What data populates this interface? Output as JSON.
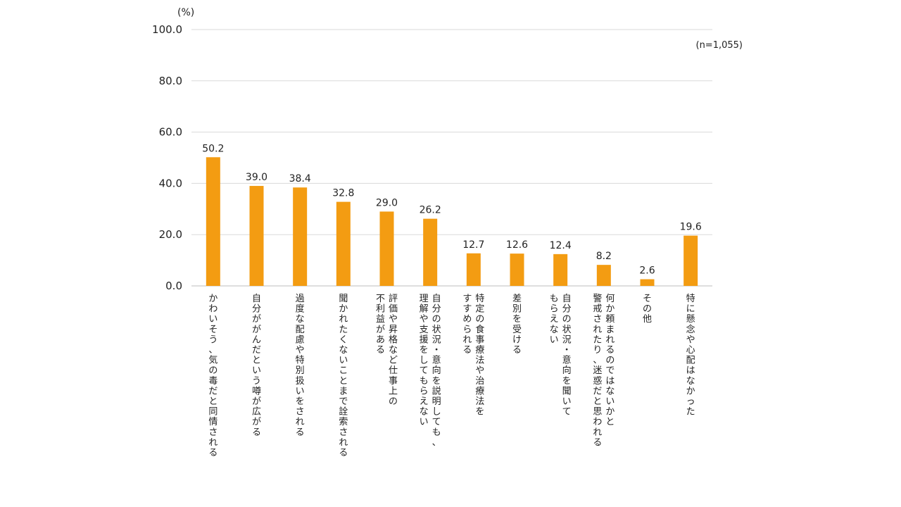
{
  "chart_data": {
    "type": "bar",
    "unit": "(%)",
    "sample": "(n=1,055)",
    "ylim": [
      0,
      100
    ],
    "yticks": [
      "0.0",
      "20.0",
      "40.0",
      "60.0",
      "80.0",
      "100.0"
    ],
    "grid": true,
    "bar_color": "#F39C12",
    "categories": [
      [
        "かわいそう、気の毒だと同情される"
      ],
      [
        "自分ががんだという噂が広がる"
      ],
      [
        "過度な配慮や特別扱いをされる"
      ],
      [
        "聞かれたくないことまで詮索される"
      ],
      [
        "評価や昇格など仕事上の",
        "不利益がある"
      ],
      [
        "自分の状況・意向を説明しても、",
        "理解や支援をしてもらえない"
      ],
      [
        "特定の食事療法や治療法を",
        "すすめられる"
      ],
      [
        "差別を受ける"
      ],
      [
        "自分の状況・意向を聞いて",
        "もらえない"
      ],
      [
        "何か頼まれるのではないかと",
        "警戒されたり、迷惑だと思われる"
      ],
      [
        "その他"
      ],
      [
        "特に懸念や心配はなかった"
      ]
    ],
    "values": [
      50.2,
      39.0,
      38.4,
      32.8,
      29.0,
      26.2,
      12.7,
      12.6,
      12.4,
      8.2,
      2.6,
      19.6
    ],
    "value_labels": [
      "50.2",
      "39.0",
      "38.4",
      "32.8",
      "29.0",
      "26.2",
      "12.7",
      "12.6",
      "12.4",
      "8.2",
      "2.6",
      "19.6"
    ]
  }
}
